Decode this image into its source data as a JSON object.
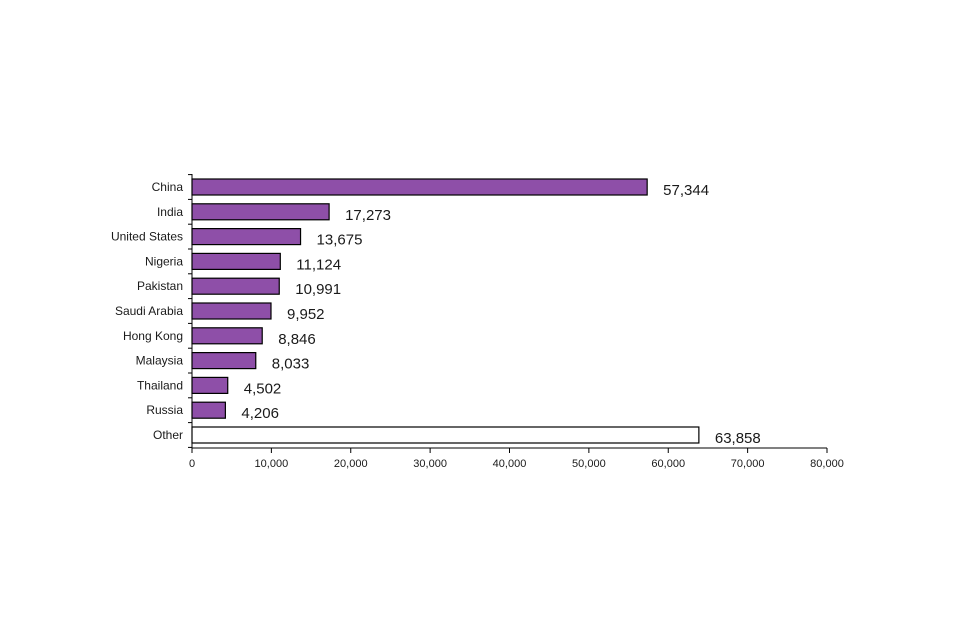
{
  "chart_data": {
    "type": "bar",
    "orientation": "horizontal",
    "title": "",
    "xlabel": "",
    "ylabel": "",
    "categories": [
      "China",
      "India",
      "United States",
      "Nigeria",
      "Pakistan",
      "Saudi Arabia",
      "Hong Kong",
      "Malaysia",
      "Thailand",
      "Russia",
      "Other"
    ],
    "values": [
      57344,
      17273,
      13675,
      11124,
      10991,
      9952,
      8846,
      8033,
      4502,
      4206,
      63858
    ],
    "value_labels": [
      "57,344",
      "17,273",
      "13,675",
      "11,124",
      "10,991",
      "9,952",
      "8,846",
      "8,033",
      "4,502",
      "4,206",
      "63,858"
    ],
    "xlim": [
      0,
      80000
    ],
    "xticks": [
      0,
      10000,
      20000,
      30000,
      40000,
      50000,
      60000,
      70000,
      80000
    ],
    "xtick_labels": [
      "0",
      "10,000",
      "20,000",
      "30,000",
      "40,000",
      "50,000",
      "60,000",
      "70,000",
      "80,000"
    ],
    "grid": false,
    "legend": "none",
    "bar_colors": [
      "#8e4fa8",
      "#8e4fa8",
      "#8e4fa8",
      "#8e4fa8",
      "#8e4fa8",
      "#8e4fa8",
      "#8e4fa8",
      "#8e4fa8",
      "#8e4fa8",
      "#8e4fa8",
      "#ffffff"
    ],
    "bar_edge_color": "#000000"
  }
}
